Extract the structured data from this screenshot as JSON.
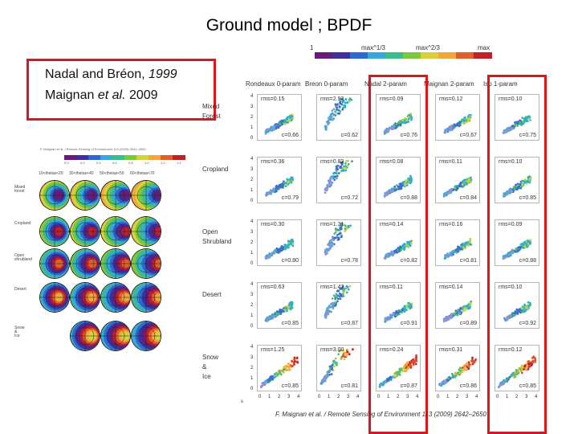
{
  "title": "Ground model ;  BPDF",
  "references": {
    "line1_normal": "Nadal and Bréon, ",
    "line1_italic": "1999",
    "line2_normal_a": "Maignan ",
    "line2_italic": "et al.",
    "line2_normal_b": " 2009"
  },
  "left_figure": {
    "caption": "F. Maignan et al. / Remote Sensing of Environment 113 (2009) 2642–2650",
    "colorbar_ticks": [
      "0.0",
      "0.2",
      "0.4",
      "0.6",
      "0.8",
      "1.0",
      "1.2",
      "1.4"
    ],
    "column_headers": [
      "10<thetas<20",
      "30<thetas<40",
      "50<thetas<50",
      "60<thetas<70"
    ],
    "row_labels": [
      "Mixed\nforest",
      "Cropland",
      "Open\nshrubland",
      "Desert",
      "Snow\n&\nIce"
    ]
  },
  "right_figure": {
    "column_headers": [
      "Rondeaux 0-param",
      "Breon 0-param",
      "Nadal 2-param",
      "Maignan 2-param",
      "Iso 1-param"
    ],
    "colorbar_labels": [
      "1",
      "max^1/3",
      "max^2/3",
      "max"
    ],
    "row_labels": [
      "Mixed\nForest",
      "Cropland",
      "Open\nShrubland",
      "Desert",
      "Snow\n&\nIce"
    ],
    "y_ticks": [
      "4",
      "3",
      "2",
      "1",
      "0"
    ],
    "x_ticks": [
      "0",
      "1",
      "2",
      "3",
      "4"
    ],
    "x_axis_mark": "s",
    "citation": "F. Maignan et al. / Remote Sensing of Environment 113 (2009) 2642–2650",
    "highlighted_columns": [
      "Nadal 2-param",
      "Iso 1-param"
    ],
    "cells": [
      [
        {
          "rms": "rms=0.15",
          "c": "c=0.66"
        },
        {
          "rms": "rms=2.93",
          "c": "c=0.62"
        },
        {
          "rms": "rms=0.09",
          "c": "c=0.76"
        },
        {
          "rms": "rms=0.12",
          "c": "c=0.67"
        },
        {
          "rms": "rms=0.10",
          "c": "c=0.75"
        }
      ],
      [
        {
          "rms": "rms=0.36",
          "c": "c=0.79"
        },
        {
          "rms": "rms=0.83",
          "c": "c=0.72"
        },
        {
          "rms": "rms=0.08",
          "c": "c=0.88"
        },
        {
          "rms": "rms=0.11",
          "c": "c=0.84"
        },
        {
          "rms": "rms=0.10",
          "c": "c=0.85"
        }
      ],
      [
        {
          "rms": "rms=0.30",
          "c": "c=0.80"
        },
        {
          "rms": "rms=1.31",
          "c": "c=0.78"
        },
        {
          "rms": "rms=0.14",
          "c": "c=0.82"
        },
        {
          "rms": "rms=0.16",
          "c": "c=0.81"
        },
        {
          "rms": "rms=0.09",
          "c": "c=0.88"
        }
      ],
      [
        {
          "rms": "rms=0.63",
          "c": "c=0.85"
        },
        {
          "rms": "rms=1.43",
          "c": "c=0.87"
        },
        {
          "rms": "rms=0.11",
          "c": "c=0.91"
        },
        {
          "rms": "rms=0.14",
          "c": "c=0.89"
        },
        {
          "rms": "rms=0.10",
          "c": "c=0.92"
        }
      ],
      [
        {
          "rms": "rms=1.25",
          "c": "c=0.85"
        },
        {
          "rms": "rms=3.00",
          "c": "c=0.81"
        },
        {
          "rms": "rms=0.24",
          "c": "c=0.87"
        },
        {
          "rms": "rms=0.31",
          "c": "c=0.86"
        },
        {
          "rms": "rms=0.12",
          "c": "c=0.85"
        }
      ]
    ]
  },
  "colors": {
    "highlight": "#e0141a",
    "colorbar": [
      "#6a1a7a",
      "#3f2f9a",
      "#2d6ad0",
      "#37a8d8",
      "#3cbc8c",
      "#7cc83c",
      "#d6d23a",
      "#f0a83a",
      "#e0602a",
      "#c02026"
    ]
  }
}
